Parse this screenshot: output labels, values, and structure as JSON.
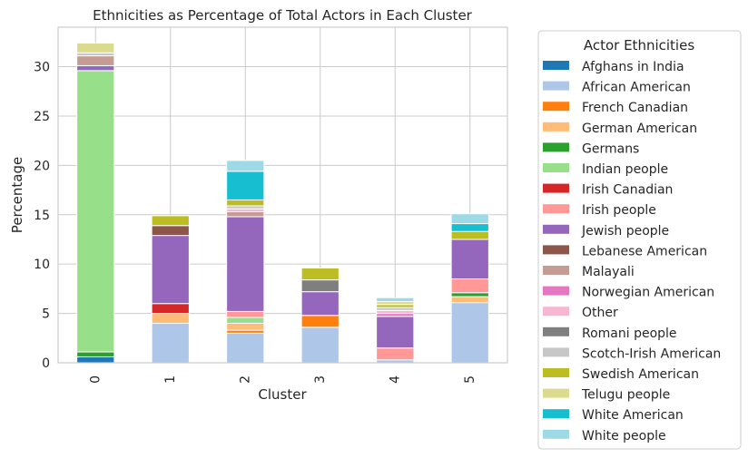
{
  "chart_data": {
    "type": "bar",
    "stacked": true,
    "title": "Ethnicities as Percentage of Total Actors in Each Cluster",
    "xlabel": "Cluster",
    "ylabel": "Percentage",
    "ylim": [
      0,
      34
    ],
    "yticks": [
      0,
      5,
      10,
      15,
      20,
      25,
      30
    ],
    "grid": true,
    "legend_title": "Actor Ethnicities",
    "legend_position": "outside-right",
    "categories": [
      "0",
      "1",
      "2",
      "3",
      "4",
      "5"
    ],
    "series": [
      {
        "name": "Afghans in India",
        "color": "#1f77b4",
        "values": [
          0.6,
          0,
          0,
          0,
          0,
          0
        ]
      },
      {
        "name": "African American",
        "color": "#aec7e8",
        "values": [
          0,
          4.0,
          3.0,
          3.6,
          0.3,
          6.1
        ]
      },
      {
        "name": "French Canadian",
        "color": "#ff7f0e",
        "values": [
          0,
          0,
          0.3,
          1.2,
          0,
          0
        ]
      },
      {
        "name": "German American",
        "color": "#ffbb78",
        "values": [
          0,
          1.0,
          0.7,
          0,
          0,
          0.6
        ]
      },
      {
        "name": "Germans",
        "color": "#2ca02c",
        "values": [
          0.5,
          0,
          0,
          0,
          0,
          0.4
        ]
      },
      {
        "name": "Indian people",
        "color": "#98df8a",
        "values": [
          28.5,
          0,
          0.6,
          0,
          0,
          0
        ]
      },
      {
        "name": "Irish Canadian",
        "color": "#d62728",
        "values": [
          0,
          1.0,
          0,
          0,
          0,
          0
        ]
      },
      {
        "name": "Irish people",
        "color": "#ff9896",
        "values": [
          0,
          0,
          0.6,
          0,
          1.2,
          1.4
        ]
      },
      {
        "name": "Jewish people",
        "color": "#9467bd",
        "values": [
          0.5,
          6.9,
          9.6,
          2.4,
          3.2,
          4.0
        ]
      },
      {
        "name": "Lebanese American",
        "color": "#8c564b",
        "values": [
          0,
          1.0,
          0,
          0,
          0,
          0
        ]
      },
      {
        "name": "Malayali",
        "color": "#c49c94",
        "values": [
          1.0,
          0,
          0.5,
          0,
          0,
          0
        ]
      },
      {
        "name": "Norwegian American",
        "color": "#e377c2",
        "values": [
          0,
          0,
          0,
          0,
          0.3,
          0
        ]
      },
      {
        "name": "Other",
        "color": "#f7b6d2",
        "values": [
          0,
          0,
          0.3,
          0,
          0.3,
          0
        ]
      },
      {
        "name": "Romani people",
        "color": "#7f7f7f",
        "values": [
          0,
          0,
          0,
          1.2,
          0,
          0
        ]
      },
      {
        "name": "Scotch-Irish American",
        "color": "#c7c7c7",
        "values": [
          0.3,
          0,
          0.3,
          0,
          0.3,
          0
        ]
      },
      {
        "name": "Swedish American",
        "color": "#bcbd22",
        "values": [
          0,
          1.0,
          0.6,
          1.2,
          0.3,
          0.8
        ]
      },
      {
        "name": "Telugu people",
        "color": "#dbdb8d",
        "values": [
          1.0,
          0,
          0,
          0,
          0.3,
          0
        ]
      },
      {
        "name": "White American",
        "color": "#17becf",
        "values": [
          0,
          0,
          2.9,
          0,
          0,
          0.8
        ]
      },
      {
        "name": "White people",
        "color": "#9edae5",
        "values": [
          0,
          0,
          1.1,
          0,
          0.4,
          1.0
        ]
      }
    ]
  }
}
